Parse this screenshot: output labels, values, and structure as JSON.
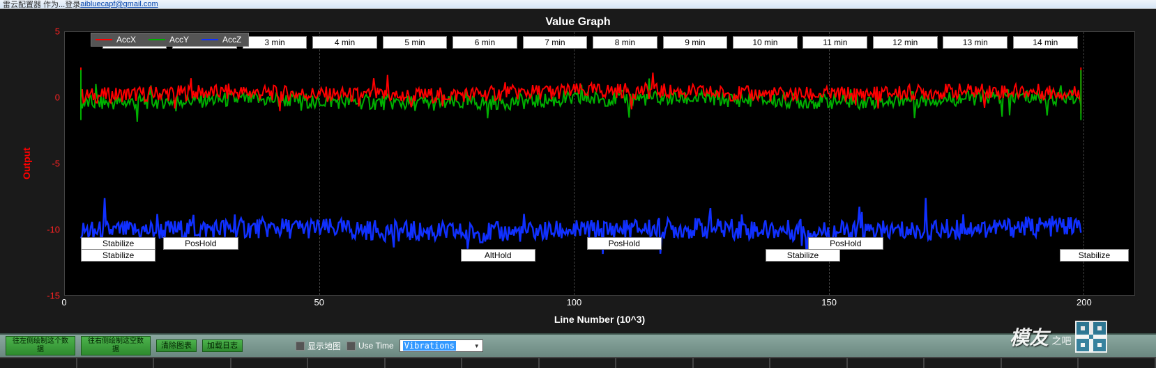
{
  "window": {
    "title_prefix": "雷云配置器 作为...登录 ",
    "title_link": "aibluecapf@gmail.com"
  },
  "chart": {
    "title": "Value Graph",
    "y_label": "Output",
    "x_label": "Line Number (10^3)",
    "background_color": "#000000",
    "frame_color": "#1a1a1a",
    "grid_color": "#444444",
    "y_tick_color": "#ff2222",
    "x_tick_color": "#ffffff",
    "title_color": "#ffffff",
    "y_label_color": "#ff0000",
    "ylim": [
      -15,
      5
    ],
    "yticks": [
      5,
      0,
      -5,
      -10,
      -15
    ],
    "xlim": [
      0,
      210
    ],
    "xticks": [
      0,
      50,
      100,
      150,
      200
    ],
    "legend": {
      "bg": "#555555",
      "items": [
        {
          "label": "AccX",
          "color": "#ff0000"
        },
        {
          "label": "AccY",
          "color": "#00b000"
        },
        {
          "label": "AccZ",
          "color": "#1030ff"
        }
      ]
    },
    "time_markers": [
      "1 min",
      "2 min",
      "3 min",
      "4 min",
      "5 min",
      "6 min",
      "7 min",
      "8 min",
      "9 min",
      "10 min",
      "11 min",
      "12 min",
      "13 min",
      "14 min"
    ],
    "time_marker_start_pct": 3.5,
    "time_marker_width_pct": 6.55,
    "mode_rows": [
      {
        "top_pct": 78,
        "items": [
          {
            "label": "Stabilize",
            "left_pct": 1.5,
            "width_pct": 7
          },
          {
            "label": "PosHold",
            "left_pct": 9.2,
            "width_pct": 7
          },
          {
            "label": "PosHold",
            "left_pct": 48.8,
            "width_pct": 7
          },
          {
            "label": "PosHold",
            "left_pct": 69.5,
            "width_pct": 7
          }
        ]
      },
      {
        "top_pct": 82.5,
        "items": [
          {
            "label": "Stabilize",
            "left_pct": 1.5,
            "width_pct": 7
          },
          {
            "label": "AltHold",
            "left_pct": 37,
            "width_pct": 7
          },
          {
            "label": "Stabilize",
            "left_pct": 65.5,
            "width_pct": 7
          },
          {
            "label": "Stabilize",
            "left_pct": 93,
            "width_pct": 6.5
          }
        ]
      }
    ],
    "series": {
      "accx": {
        "color": "#ff0000",
        "mean": 0.3,
        "noise": 0.6,
        "spike": 0.8
      },
      "accy": {
        "color": "#00b000",
        "mean": -0.2,
        "noise": 0.6,
        "spike": 0.7
      },
      "accz": {
        "color": "#1030ff",
        "mean": -10,
        "noise": 0.8,
        "spike": 1.0
      }
    },
    "data_x_start_pct": 1.5,
    "data_x_end_pct": 95
  },
  "bottom": {
    "buttons": [
      {
        "id": "draw-left",
        "label": "往左侧绘制这个数据"
      },
      {
        "id": "draw-right",
        "label": "往右侧绘制这空数据"
      },
      {
        "id": "clear-chart",
        "label": "清除图表"
      },
      {
        "id": "load-log",
        "label": "加载日志"
      }
    ],
    "checkboxes": [
      {
        "id": "show-map",
        "label": "显示地图",
        "checked": false
      },
      {
        "id": "use-time",
        "label": "Use Time",
        "checked": false
      }
    ],
    "dropdown": {
      "id": "mode-select",
      "value": "Vibrations"
    },
    "button_bg": "#3aa33a",
    "bar_bg": "#7a978f"
  },
  "watermark": {
    "text": "模友",
    "sub": "之吧"
  }
}
